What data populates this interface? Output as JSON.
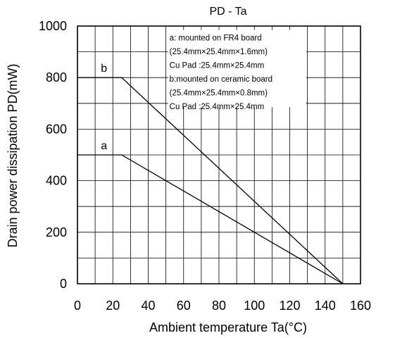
{
  "chart_data": {
    "type": "line",
    "title": "PD - Ta",
    "xlabel": "Ambient temperature Ta(°C)",
    "ylabel": "Drain power dissipation PD(mW)",
    "xlim": [
      0,
      160
    ],
    "ylim": [
      0,
      1000
    ],
    "xticks": [
      0,
      20,
      40,
      60,
      80,
      100,
      120,
      140,
      160
    ],
    "yticks": [
      0,
      200,
      400,
      600,
      800,
      1000
    ],
    "x_minor_step": 10,
    "y_minor_step": 100,
    "grid": true,
    "series": [
      {
        "name": "a",
        "x": [
          0,
          25,
          150
        ],
        "y": [
          500,
          500,
          0
        ]
      },
      {
        "name": "b",
        "x": [
          0,
          25,
          150
        ],
        "y": [
          800,
          800,
          0
        ]
      }
    ],
    "annotations": [
      "a: mounted on FR4 board",
      "(25.4mm×25.4mm×1.6mm)",
      "Cu Pad :25.4mm×25.4mm",
      "b:mounted on ceramic board",
      "(25.4mm×25.4mm×0.8mm)",
      "Cu Pad :25.4mm×25.4mm"
    ]
  }
}
